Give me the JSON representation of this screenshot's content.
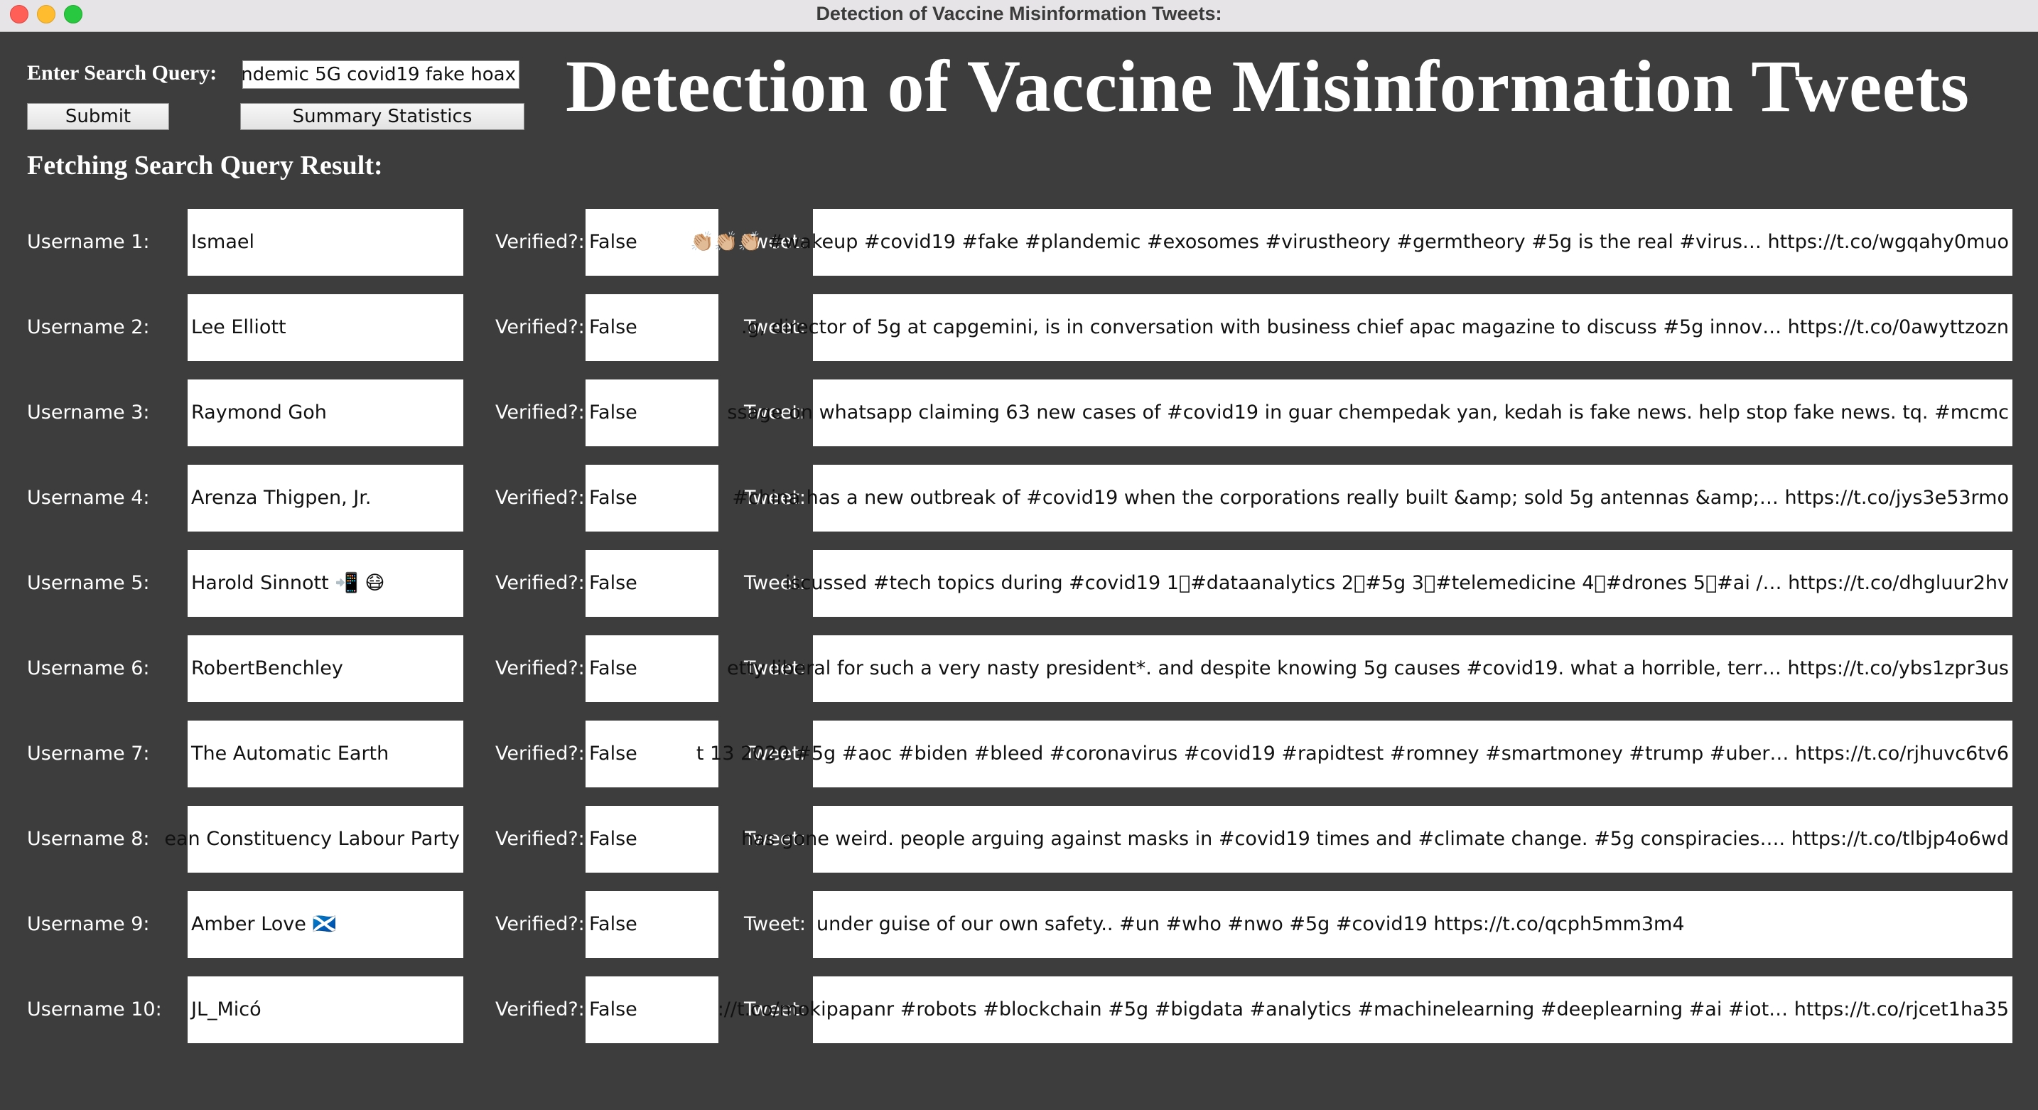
{
  "window": {
    "title": "Detection of Vaccine Misinformation Tweets:"
  },
  "header": {
    "query_label": "Enter Search Query:",
    "query_value": "ndemic 5G covid19 fake hoax",
    "submit_label": "Submit",
    "stats_label": "Summary Statistics",
    "big_title": "Detection of Vaccine Misinformation Tweets",
    "fetch_label": "Fetching Search Query Result:"
  },
  "labels": {
    "verified": "Verified?:",
    "tweet": "Tweet:"
  },
  "results": [
    {
      "user_label": "Username 1:",
      "username": "Ismael",
      "verified": "False",
      "tweet": "👏🏼👏🏼👏🏼 #wakeup #covid19 #fake #plandemic #exosomes #virustheory #germtheory #5g is the real #virus… https://t.co/wgqahy0muo"
    },
    {
      "user_label": "Username 2:",
      "username": "Lee Elliott",
      "verified": "False",
      "tweet": ".g, director of 5g at capgemini, is in conversation with business chief apac magazine to discuss #5g innov… https://t.co/0awyttzozn"
    },
    {
      "user_label": "Username 3:",
      "username": "Raymond Goh",
      "verified": "False",
      "tweet": "ssage on whatsapp claiming 63 new cases of #covid19 in guar chempedak yan, kedah is fake news.  help stop fake news. tq.  #mcmc"
    },
    {
      "user_label": "Username 4:",
      "username": "Arenza Thigpen, Jr.",
      "verified": "False",
      "tweet": " #china has a new outbreak of #covid19 when the corporations really built &amp; sold 5g antennas &amp;… https://t.co/jys3e53rmo"
    },
    {
      "user_label": "Username 5:",
      "username": "Harold Sinnott 📲 😷",
      "verified": "False",
      "tweet": "iscussed #tech topics during #covid19   1⃣#dataanalytics 2⃣#5g 3⃣#telemedicine 4⃣#drones 5⃣#ai /… https://t.co/dhgluur2hv"
    },
    {
      "user_label": "Username 6:",
      "username": "RobertBenchley",
      "verified": "False",
      "tweet": "etty liberal for such a very nasty president*. and despite knowing 5g causes #covid19. what a horrible, terr… https://t.co/ybs1zpr3us"
    },
    {
      "user_label": "Username 7:",
      "username": "The Automatic Earth",
      "verified": "False",
      "tweet": "t 13 2020 #5g #aoc #biden #bleed #coronavirus #covid19 #rapidtest #romney #smartmoney #trump #uber… https://t.co/rjhuvc6tv6"
    },
    {
      "user_label": "Username 8:",
      "username": "ean Constituency Labour Party",
      "verified": "False",
      "tweet": " has gone weird. people arguing against masks in #covid19 times and  #climate change. #5g conspiracies…. https://t.co/tlbjp4o6wd"
    },
    {
      "user_label": "Username 9:",
      "username": "Amber Love 🏴󠁧󠁢󠁳󠁣󠁴󠁿",
      "verified": "False",
      "tweet": "under guise of our own safety.. #un #who #nwo #5g #covid19 https://t.co/qcph5mm3m4"
    },
    {
      "user_label": "Username 10:",
      "username": "JL_Micó",
      "verified": "False",
      "tweet": "://t.co/mokipapanr #robots #blockchain #5g #bigdata #analytics #machinelearning #deeplearning #ai #iot… https://t.co/rjcet1ha35"
    }
  ]
}
